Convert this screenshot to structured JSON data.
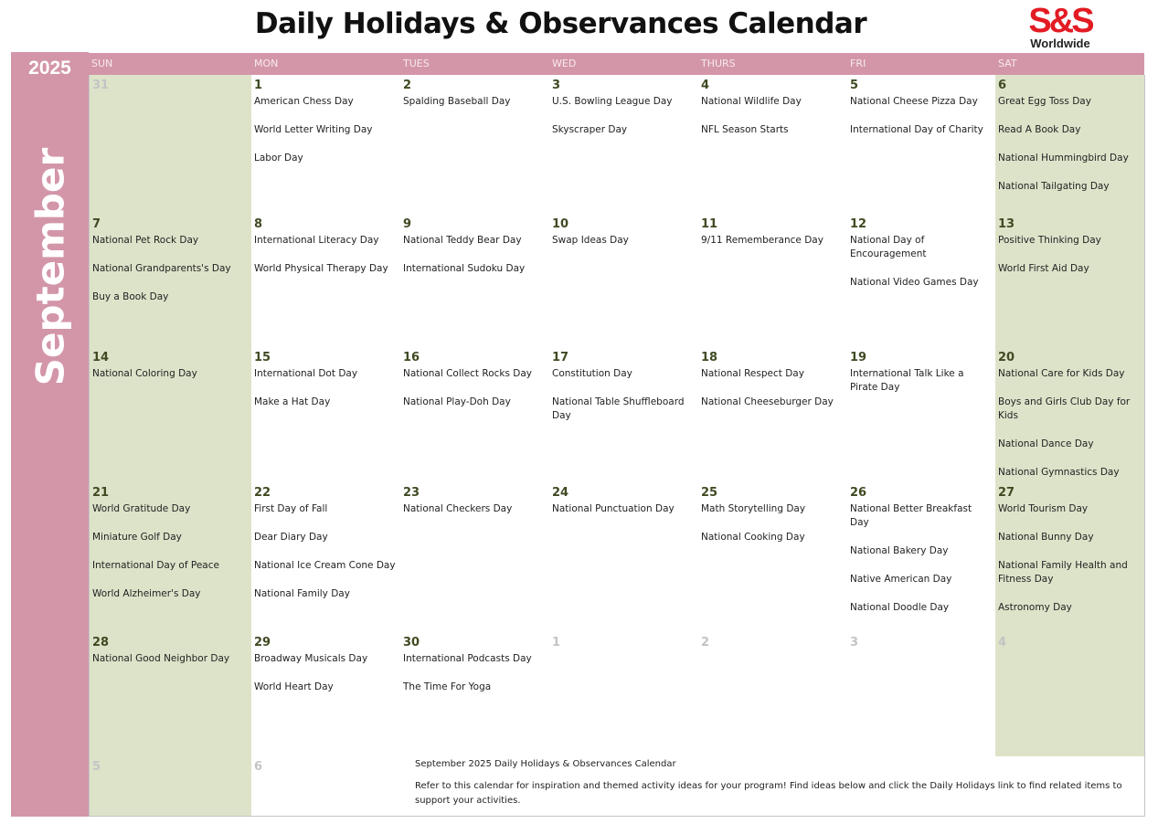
{
  "title": "Daily Holidays & Observances Calendar",
  "logo": {
    "mark": "S&S",
    "text": "Worldwide"
  },
  "year": "2025",
  "month": "September",
  "colors": {
    "accent": "#d396a8",
    "weekend": "#dde3c9",
    "date": "#3f4a22",
    "logo": "#e31b23"
  },
  "days": [
    "SUN",
    "MON",
    "TUES",
    "WED",
    "THURS",
    "FRI",
    "SAT"
  ],
  "weeks": [
    [
      {
        "d": "31",
        "other": true,
        "e": []
      },
      {
        "d": "1",
        "e": [
          "American Chess Day",
          "World Letter Writing Day",
          "Labor Day"
        ]
      },
      {
        "d": "2",
        "e": [
          "Spalding Baseball Day"
        ]
      },
      {
        "d": "3",
        "e": [
          "U.S. Bowling League Day",
          "Skyscraper Day"
        ]
      },
      {
        "d": "4",
        "e": [
          "National Wildlife Day",
          "NFL Season Starts"
        ]
      },
      {
        "d": "5",
        "e": [
          "National Cheese Pizza Day",
          "International Day of Charity"
        ]
      },
      {
        "d": "6",
        "e": [
          "Great Egg Toss Day",
          "Read A Book Day",
          "National Hummingbird Day",
          "National Tailgating Day"
        ]
      }
    ],
    [
      {
        "d": "7",
        "e": [
          "National Pet Rock Day",
          "National Grandparents's Day",
          "Buy a Book Day"
        ]
      },
      {
        "d": "8",
        "e": [
          "International Literacy Day",
          "World Physical Therapy Day"
        ]
      },
      {
        "d": "9",
        "e": [
          "National Teddy Bear Day",
          "International Sudoku Day"
        ]
      },
      {
        "d": "10",
        "e": [
          "Swap Ideas Day"
        ]
      },
      {
        "d": "11",
        "e": [
          "9/11 Rememberance Day"
        ]
      },
      {
        "d": "12",
        "e": [
          "National Day of Encouragement",
          "National Video Games Day"
        ]
      },
      {
        "d": "13",
        "e": [
          "Positive Thinking Day",
          "World First Aid Day"
        ]
      }
    ],
    [
      {
        "d": "14",
        "e": [
          "National Coloring Day"
        ]
      },
      {
        "d": "15",
        "e": [
          "International Dot Day",
          "Make a Hat Day"
        ]
      },
      {
        "d": "16",
        "e": [
          "National Collect Rocks Day",
          "National Play-Doh Day"
        ]
      },
      {
        "d": "17",
        "e": [
          "Constitution Day",
          "National Table Shuffleboard Day"
        ]
      },
      {
        "d": "18",
        "e": [
          "National Respect Day",
          "National Cheeseburger Day"
        ]
      },
      {
        "d": "19",
        "e": [
          "International Talk Like a Pirate Day"
        ]
      },
      {
        "d": "20",
        "e": [
          "National Care for Kids Day",
          "Boys and Girls Club Day for Kids",
          "National Dance Day",
          "National Gymnastics Day"
        ]
      }
    ],
    [
      {
        "d": "21",
        "e": [
          "World Gratitude Day",
          "Miniature Golf Day",
          "International Day of Peace",
          "World Alzheimer's Day"
        ]
      },
      {
        "d": "22",
        "e": [
          "First Day of Fall",
          "Dear Diary Day",
          "National Ice Cream Cone Day",
          "National Family Day"
        ]
      },
      {
        "d": "23",
        "e": [
          "National Checkers Day"
        ]
      },
      {
        "d": "24",
        "e": [
          "National Punctuation Day"
        ]
      },
      {
        "d": "25",
        "e": [
          "Math Storytelling Day",
          "National Cooking Day"
        ]
      },
      {
        "d": "26",
        "e": [
          "National Better Breakfast Day",
          "National Bakery Day",
          "Native American Day",
          "National Doodle Day"
        ]
      },
      {
        "d": "27",
        "e": [
          "World Tourism Day",
          "National Bunny Day",
          "National Family Health and Fitness Day",
          "Astronomy Day"
        ]
      }
    ],
    [
      {
        "d": "28",
        "e": [
          "National Good Neighbor Day"
        ]
      },
      {
        "d": "29",
        "e": [
          "Broadway Musicals Day",
          "World Heart Day"
        ]
      },
      {
        "d": "30",
        "e": [
          "International Podcasts Day",
          "The Time For Yoga"
        ]
      },
      {
        "d": "1",
        "other": true,
        "e": []
      },
      {
        "d": "2",
        "other": true,
        "e": []
      },
      {
        "d": "3",
        "other": true,
        "e": []
      },
      {
        "d": "4",
        "other": true,
        "e": []
      }
    ],
    [
      {
        "d": "5",
        "other": true,
        "e": []
      },
      {
        "d": "6",
        "other": true,
        "e": []
      }
    ]
  ],
  "note": {
    "heading": "September 2025 Daily Holidays & Observances Calendar",
    "body": "Refer to this calendar for inspiration and themed activity ideas for your program! Find ideas below and click the Daily Holidays link to find related items to support your activities."
  }
}
